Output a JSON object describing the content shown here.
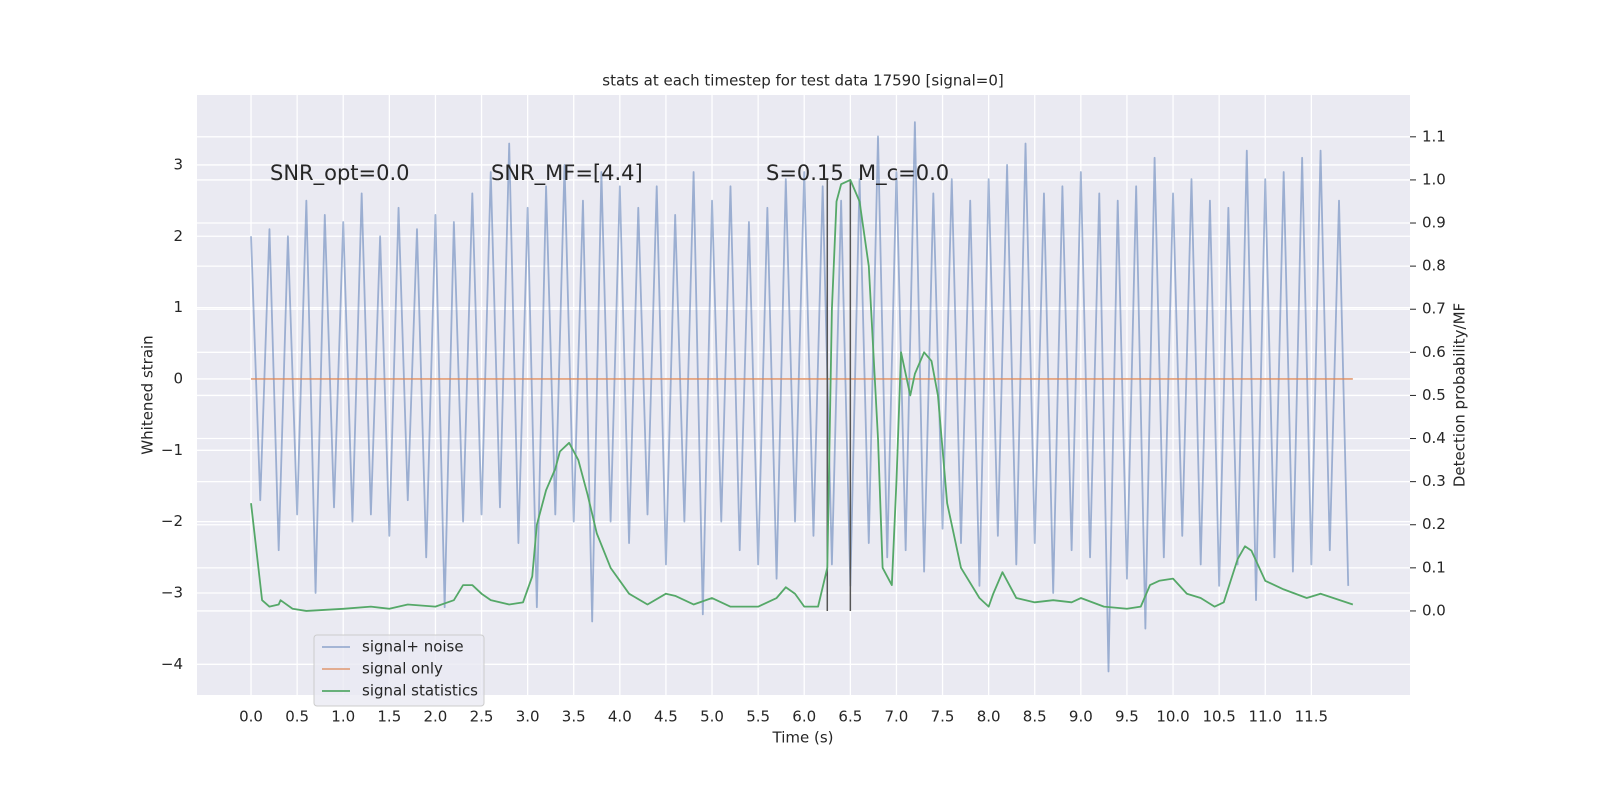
{
  "chart_data": {
    "type": "line",
    "title": "stats at each timestep for test data 17590 [signal=0]",
    "xlabel": "Time (s)",
    "ylabel": "Whitened strain",
    "y2label": "Detection probability/MF",
    "xlim": [
      -0.586,
      12.57
    ],
    "ylim": [
      -4.43,
      3.98
    ],
    "y2lim": [
      -0.195,
      1.197
    ],
    "xticks": [
      {
        "value": 0,
        "label": "0.0"
      },
      0.5,
      {
        "value": 1,
        "label": "1.0"
      },
      1.5,
      {
        "value": 2,
        "label": "2.0"
      },
      2.5,
      {
        "value": 3,
        "label": "3.0"
      },
      3.5,
      {
        "value": 4,
        "label": "4.0"
      },
      4.5,
      {
        "value": 5,
        "label": "5.0"
      },
      5.5,
      {
        "value": 6,
        "label": "6.0"
      },
      6.5,
      {
        "value": 7,
        "label": "7.0"
      },
      7.5,
      {
        "value": 8,
        "label": "8.0"
      },
      8.5,
      {
        "value": 9,
        "label": "9.0"
      },
      9.5,
      {
        "value": 10,
        "label": "10.0"
      },
      10.5,
      {
        "value": 11,
        "label": "11.0"
      },
      11.5
    ],
    "yticks": [
      {
        "value": -4,
        "label": "−4"
      },
      {
        "value": -3,
        "label": "−3"
      },
      {
        "value": -2,
        "label": "−2"
      },
      {
        "value": -1,
        "label": "−1"
      },
      0,
      1,
      2,
      3
    ],
    "y2ticks": [
      {
        "value": 0,
        "label": "0.0"
      },
      0.1,
      0.2,
      0.3,
      0.4,
      0.5,
      0.6,
      0.7,
      0.8,
      0.9,
      {
        "value": 1,
        "label": "1.0"
      },
      1.1
    ],
    "grid": true,
    "legend": "lower left",
    "annotations": [
      "SNR_opt=0.0",
      "SNR_MF=[4.4]",
      "S=0.15",
      "M_c=0.0"
    ],
    "vlines": {
      "x": [
        6.25,
        6.5
      ],
      "ymin": 0,
      "ymax": 1,
      "axis": "y2",
      "color": "#555555"
    },
    "series": [
      {
        "name": "signal+ noise",
        "color": "#4c72b0",
        "alpha": 0.5,
        "axis": "y",
        "x": [
          0.0,
          0.1,
          0.2,
          0.3,
          0.4,
          0.5,
          0.6,
          0.7,
          0.8,
          0.9,
          1.0,
          1.1,
          1.2,
          1.3,
          1.4,
          1.5,
          1.6,
          1.7,
          1.8,
          1.9,
          2.0,
          2.1,
          2.2,
          2.3,
          2.4,
          2.5,
          2.6,
          2.7,
          2.8,
          2.9,
          3.0,
          3.1,
          3.2,
          3.3,
          3.4,
          3.5,
          3.6,
          3.7,
          3.8,
          3.9,
          4.0,
          4.1,
          4.2,
          4.3,
          4.4,
          4.5,
          4.6,
          4.7,
          4.8,
          4.9,
          5.0,
          5.1,
          5.2,
          5.3,
          5.4,
          5.5,
          5.6,
          5.7,
          5.8,
          5.9,
          6.0,
          6.1,
          6.2,
          6.3,
          6.4,
          6.5,
          6.6,
          6.7,
          6.8,
          6.9,
          7.0,
          7.1,
          7.2,
          7.3,
          7.4,
          7.5,
          7.6,
          7.7,
          7.8,
          7.9,
          8.0,
          8.1,
          8.2,
          8.3,
          8.4,
          8.5,
          8.6,
          8.7,
          8.8,
          8.9,
          9.0,
          9.1,
          9.2,
          9.3,
          9.4,
          9.5,
          9.6,
          9.7,
          9.8,
          9.9,
          10.0,
          10.1,
          10.2,
          10.3,
          10.4,
          10.5,
          10.6,
          10.7,
          10.8,
          10.9,
          11.0,
          11.1,
          11.2,
          11.3,
          11.4,
          11.5,
          11.6,
          11.7,
          11.8,
          11.9
        ],
        "values": [
          2.0,
          -1.7,
          2.1,
          -2.4,
          2.0,
          -1.9,
          2.5,
          -3.0,
          2.3,
          -1.8,
          2.2,
          -2.0,
          2.6,
          -1.9,
          2.0,
          -2.2,
          2.4,
          -1.7,
          2.1,
          -2.5,
          2.3,
          -3.2,
          2.2,
          -2.0,
          2.6,
          -1.9,
          2.9,
          -1.8,
          3.3,
          -2.3,
          2.4,
          -3.2,
          2.7,
          -1.9,
          3.0,
          -2.0,
          2.5,
          -3.4,
          2.9,
          -2.0,
          2.7,
          -2.3,
          2.4,
          -1.9,
          2.7,
          -2.6,
          2.3,
          -2.0,
          2.9,
          -3.3,
          2.5,
          -2.0,
          2.7,
          -2.4,
          2.2,
          -2.6,
          2.4,
          -2.8,
          2.8,
          -2.0,
          2.9,
          -2.2,
          2.7,
          -2.6,
          2.5,
          -2.9,
          2.8,
          -2.3,
          3.4,
          -2.5,
          2.9,
          -2.4,
          3.6,
          -2.7,
          2.6,
          -2.1,
          2.8,
          -2.3,
          2.5,
          -2.9,
          2.8,
          -2.2,
          3.0,
          -2.6,
          3.3,
          -2.3,
          2.6,
          -3.0,
          2.7,
          -2.4,
          2.9,
          -2.5,
          2.6,
          -4.1,
          2.5,
          -2.8,
          2.7,
          -3.5,
          3.1,
          -2.5,
          2.6,
          -2.2,
          2.8,
          -2.6,
          2.5,
          -2.9,
          2.4,
          -2.6,
          3.2,
          -3.1,
          2.8,
          -2.5,
          2.9,
          -2.7,
          3.1,
          -2.6,
          3.2,
          -2.4,
          2.5,
          -2.9
        ]
      },
      {
        "name": "signal only",
        "color": "#dd8452",
        "alpha": 0.7,
        "axis": "y",
        "x": [
          0.0,
          11.95
        ],
        "values": [
          0,
          0
        ]
      },
      {
        "name": "signal statistics",
        "color": "#55a868",
        "alpha": 1,
        "axis": "y2",
        "x": [
          0.0,
          0.12,
          0.2,
          0.3,
          0.32,
          0.45,
          0.6,
          1.0,
          1.3,
          1.5,
          1.7,
          2.0,
          2.2,
          2.3,
          2.4,
          2.5,
          2.6,
          2.8,
          2.95,
          3.05,
          3.1,
          3.2,
          3.3,
          3.35,
          3.45,
          3.55,
          3.65,
          3.75,
          3.9,
          4.1,
          4.3,
          4.5,
          4.6,
          4.8,
          5.0,
          5.2,
          5.5,
          5.7,
          5.8,
          5.9,
          6.0,
          6.15,
          6.25,
          6.3,
          6.35,
          6.4,
          6.5,
          6.6,
          6.7,
          6.8,
          6.85,
          6.95,
          7.0,
          7.05,
          7.15,
          7.2,
          7.3,
          7.38,
          7.45,
          7.55,
          7.7,
          7.9,
          8.0,
          8.05,
          8.15,
          8.2,
          8.3,
          8.5,
          8.7,
          8.9,
          9.0,
          9.25,
          9.5,
          9.65,
          9.75,
          9.85,
          10.0,
          10.15,
          10.3,
          10.45,
          10.55,
          10.7,
          10.78,
          10.85,
          11.0,
          11.2,
          11.45,
          11.6,
          11.95
        ],
        "values": [
          0.25,
          0.025,
          0.01,
          0.015,
          0.025,
          0.005,
          0.0,
          0.005,
          0.01,
          0.005,
          0.015,
          0.01,
          0.025,
          0.06,
          0.06,
          0.04,
          0.025,
          0.015,
          0.02,
          0.08,
          0.2,
          0.28,
          0.33,
          0.37,
          0.39,
          0.35,
          0.27,
          0.18,
          0.1,
          0.04,
          0.015,
          0.04,
          0.035,
          0.015,
          0.03,
          0.01,
          0.01,
          0.03,
          0.055,
          0.04,
          0.01,
          0.01,
          0.1,
          0.7,
          0.95,
          0.99,
          1.0,
          0.95,
          0.8,
          0.4,
          0.1,
          0.06,
          0.3,
          0.6,
          0.5,
          0.55,
          0.6,
          0.58,
          0.5,
          0.25,
          0.1,
          0.03,
          0.01,
          0.04,
          0.09,
          0.07,
          0.03,
          0.02,
          0.025,
          0.02,
          0.03,
          0.01,
          0.005,
          0.01,
          0.06,
          0.07,
          0.075,
          0.04,
          0.03,
          0.01,
          0.02,
          0.12,
          0.15,
          0.14,
          0.07,
          0.05,
          0.03,
          0.04,
          0.015
        ]
      }
    ]
  }
}
